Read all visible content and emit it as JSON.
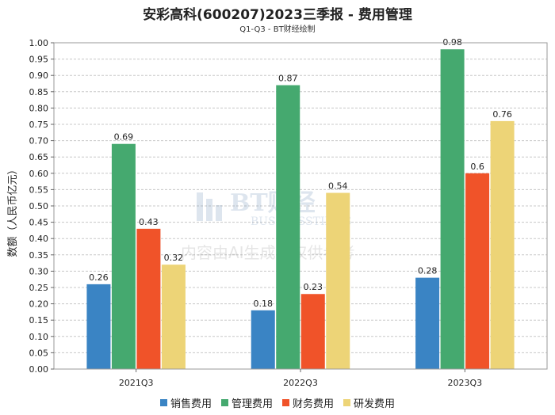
{
  "title": "安彩高科(600207)2023三季报 - 费用管理",
  "subtitle": "Q1-Q3 - BT财经绘制",
  "watermark": {
    "brand": "BT财经",
    "brand_en": "BUSINESSTIMES",
    "notice": "内容由AI生成，仅供参考"
  },
  "chart_data": {
    "type": "bar",
    "categories": [
      "2021Q3",
      "2022Q3",
      "2023Q3"
    ],
    "series": [
      {
        "name": "销售费用",
        "color": "#3a84c4",
        "values": [
          0.26,
          0.18,
          0.28
        ]
      },
      {
        "name": "管理费用",
        "color": "#45a96f",
        "values": [
          0.69,
          0.87,
          0.98
        ]
      },
      {
        "name": "财务费用",
        "color": "#f05329",
        "values": [
          0.43,
          0.23,
          0.6
        ]
      },
      {
        "name": "研发费用",
        "color": "#edd477",
        "values": [
          0.32,
          0.54,
          0.76
        ]
      }
    ],
    "value_labels": [
      [
        "0.26",
        "0.18",
        "0.28"
      ],
      [
        "0.69",
        "0.87",
        "0.98"
      ],
      [
        "0.43",
        "0.23",
        "0.6"
      ],
      [
        "0.32",
        "0.54",
        "0.76"
      ]
    ],
    "ylabel": "数额（人民币亿元）",
    "xlabel": "",
    "ylim": [
      0,
      1.0
    ],
    "yticks": [
      "0.00",
      "0.05",
      "0.10",
      "0.15",
      "0.20",
      "0.25",
      "0.30",
      "0.35",
      "0.40",
      "0.45",
      "0.50",
      "0.55",
      "0.60",
      "0.65",
      "0.70",
      "0.75",
      "0.80",
      "0.85",
      "0.90",
      "0.95",
      "1.00"
    ],
    "grid": true,
    "legend_position": "bottom"
  }
}
